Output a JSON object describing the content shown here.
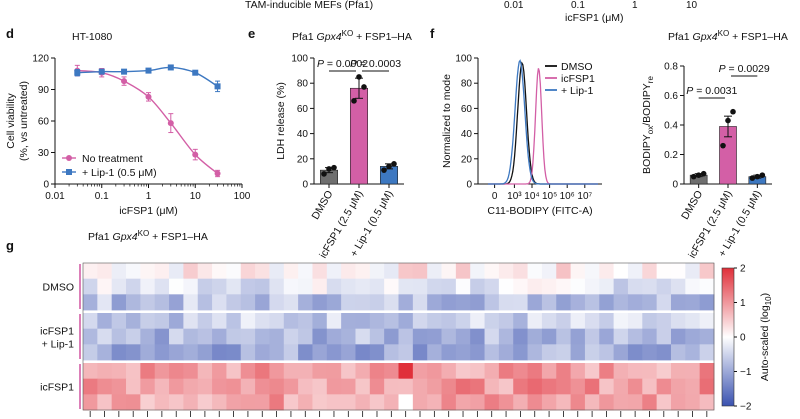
{
  "top_strip": {
    "left_text": "TAM-inducible MEFs (Pfa1)",
    "ticks": [
      "0.01",
      "0.1",
      "1",
      "10"
    ],
    "xlabel": "icFSP1 (μM)"
  },
  "chart_data": [
    {
      "panel": "d",
      "type": "line",
      "title": "HT-1080",
      "xlabel": "icFSP1 (μM)",
      "ylabel": "Cell viability (%, vs untreated)",
      "xscale": "log",
      "xlim": [
        0.01,
        100
      ],
      "ylim": [
        0,
        120
      ],
      "xticks": [
        "0.01",
        "0.1",
        "1",
        "10",
        "100"
      ],
      "yticks": [
        "0",
        "30",
        "60",
        "90",
        "120"
      ],
      "series": [
        {
          "name": "No treatment",
          "color": "#d35fa6",
          "marker": "circle",
          "x": [
            0.03,
            0.1,
            0.3,
            1,
            3,
            10,
            30
          ],
          "values": [
            108,
            106,
            98,
            83,
            58,
            28,
            10
          ],
          "err": [
            5,
            4,
            4,
            4,
            9,
            5,
            3
          ]
        },
        {
          "name": "+ Lip-1 (0.5 μM)",
          "color": "#3d78c1",
          "marker": "square",
          "x": [
            0.03,
            0.1,
            0.3,
            1,
            3,
            10,
            30
          ],
          "values": [
            106,
            107,
            107,
            108,
            111,
            106,
            93
          ],
          "err": [
            3,
            2,
            2,
            2,
            2,
            2,
            5
          ]
        }
      ],
      "legend": [
        "No treatment",
        "+ Lip-1 (0.5 μM)"
      ]
    },
    {
      "panel": "e",
      "type": "bar",
      "title_pre": "Pfa1 ",
      "title_gene": "Gpx4",
      "title_sup": "KO",
      "title_post": " + FSP1–HA",
      "ylabel": "LDH release (%)",
      "ylim": [
        0,
        100
      ],
      "yticks": [
        "0",
        "20",
        "40",
        "60",
        "80",
        "100"
      ],
      "categories": [
        "DMSO",
        "icFSP1 (2.5 μM)",
        "+ Lip-1 (0.5 μM)"
      ],
      "values": [
        11,
        76,
        14
      ],
      "err": [
        2,
        8,
        2
      ],
      "colors": [
        "#6f6f6f",
        "#d35fa6",
        "#3d78c1"
      ],
      "points": [
        [
          8,
          12,
          13
        ],
        [
          66,
          85,
          77
        ],
        [
          11,
          14,
          16
        ]
      ],
      "annotations": [
        "P = 0.0002",
        "P = 0.0003"
      ]
    },
    {
      "panel": "f",
      "type": "line",
      "title": "",
      "xlabel": "C11-BODIPY (FITC-A)",
      "ylabel": "Normalized to mode",
      "ylim": [
        0,
        100
      ],
      "yticks": [
        "0",
        "20",
        "40",
        "60",
        "80",
        "100"
      ],
      "xticks": [
        "0",
        "10³",
        "10⁴",
        "10⁵",
        "10⁶",
        "10⁷"
      ],
      "series": [
        {
          "name": "DMSO",
          "color": "#111111",
          "peak_x": 3.55,
          "height": 96,
          "sigma": 0.2
        },
        {
          "name": "icFSP1",
          "color": "#d35fa6",
          "peak_x": 4.3,
          "height": 92,
          "sigma": 0.14
        },
        {
          "name": "+ Lip-1",
          "color": "#3d78c1",
          "peak_x": 3.45,
          "height": 98,
          "sigma": 0.22
        }
      ],
      "legend": [
        "DMSO",
        "icFSP1",
        "+ Lip-1"
      ]
    },
    {
      "panel": "f2",
      "type": "bar",
      "title_pre": "Pfa1 ",
      "title_gene": "Gpx4",
      "title_sup": "KO",
      "title_post": " + FSP1–HA",
      "ylabel": "BODIPYox/BODIPYre",
      "ylim": [
        0,
        0.8
      ],
      "yticks": [
        "0",
        "0.2",
        "0.4",
        "0.6",
        "0.8"
      ],
      "categories": [
        "DMSO",
        "icFSP1 (2.5 μM)",
        "+ Lip-1 (0.5 μM)"
      ],
      "values": [
        0.06,
        0.39,
        0.05
      ],
      "err": [
        0.01,
        0.07,
        0.01
      ],
      "colors": [
        "#6f6f6f",
        "#d35fa6",
        "#3d78c1"
      ],
      "points": [
        [
          0.05,
          0.06,
          0.07
        ],
        [
          0.26,
          0.43,
          0.49
        ],
        [
          0.04,
          0.05,
          0.06
        ]
      ],
      "annotations": [
        "P = 0.0031",
        "P = 0.0029"
      ]
    },
    {
      "panel": "g",
      "type": "heatmap",
      "title_pre": "Pfa1 ",
      "title_gene": "Gpx4",
      "title_sup": "KO",
      "title_post": " + FSP1–HA",
      "row_groups": [
        "DMSO",
        "icFSP1 + Lip-1",
        "icFSP1"
      ],
      "rows_per_group": 3,
      "columns": 44,
      "colorbar_label": "Auto-scaled (log10)",
      "colorbar_ticks": [
        "2",
        "1",
        "0",
        "−1",
        "−2"
      ],
      "vrange": [
        -2,
        2
      ],
      "colors": {
        "low": "#3a52b0",
        "mid": "#ffffff",
        "high": "#e0303a"
      },
      "group_means": [
        -0.3,
        -0.75,
        0.95
      ],
      "row_means": [
        0.15,
        -0.25,
        -0.7,
        -0.55,
        -0.85,
        -0.95,
        0.9,
        1.0,
        0.9
      ]
    }
  ],
  "panel_letters": {
    "d": "d",
    "e": "e",
    "f": "f",
    "g": "g"
  }
}
